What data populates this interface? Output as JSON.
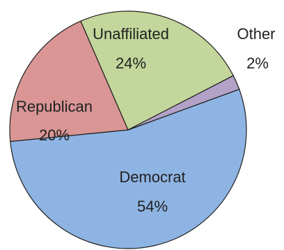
{
  "chart_data": {
    "type": "pie",
    "title": "",
    "slices": [
      {
        "name": "Democrat",
        "value": 54,
        "label": "54%",
        "color": "#8eb4e3"
      },
      {
        "name": "Republican",
        "value": 20,
        "label": "20%",
        "color": "#d99694"
      },
      {
        "name": "Unaffiliated",
        "value": 24,
        "label": "24%",
        "color": "#c3d69b"
      },
      {
        "name": "Other",
        "value": 2,
        "label": "2%",
        "color": "#b3a2c7"
      }
    ],
    "stroke_color": "#1f1f1f"
  }
}
